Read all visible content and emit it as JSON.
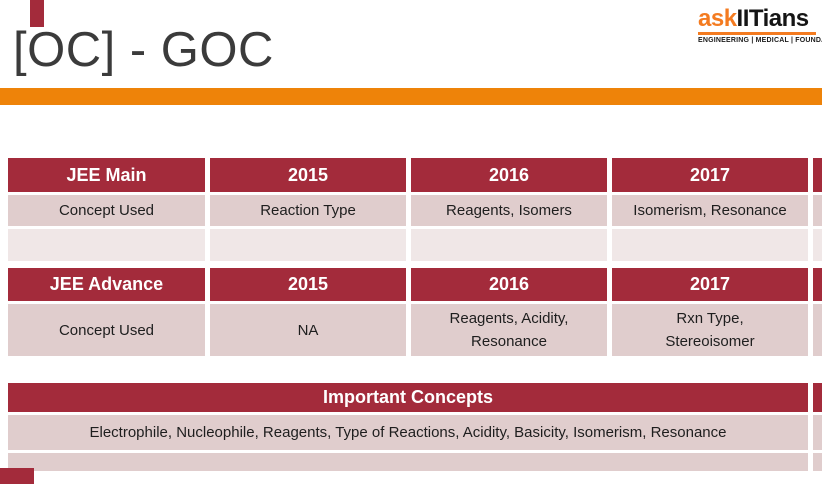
{
  "slide": {
    "title": "[OC] - GOC",
    "accent_color": "#ee8309",
    "theme_color": "#a32b3b"
  },
  "logo": {
    "brand_orange": "ask",
    "brand_black": "IITians",
    "tagline": "ENGINEERING | MEDICAL | FOUNDATION"
  },
  "tables": {
    "jee_main": {
      "headers": [
        "JEE Main",
        "2015",
        "2016",
        "2017"
      ],
      "rows": [
        [
          "Concept Used",
          "Reaction Type",
          "Reagents, Isomers",
          "Isomerism, Resonance"
        ],
        [
          "",
          "",
          "",
          ""
        ]
      ]
    },
    "jee_advance": {
      "headers": [
        "JEE Advance",
        "2015",
        "2016",
        "2017"
      ],
      "rows": [
        [
          "Concept Used",
          "NA",
          "Reagents, Acidity, Resonance",
          "Rxn Type, Stereoisomer"
        ]
      ]
    },
    "important_concepts": {
      "header": "Important Concepts",
      "rows": [
        "Electrophile, Nucleophile,  Reagents,  Type of Reactions,  Acidity, Basicity, Isomerism, Resonance",
        ""
      ]
    }
  }
}
